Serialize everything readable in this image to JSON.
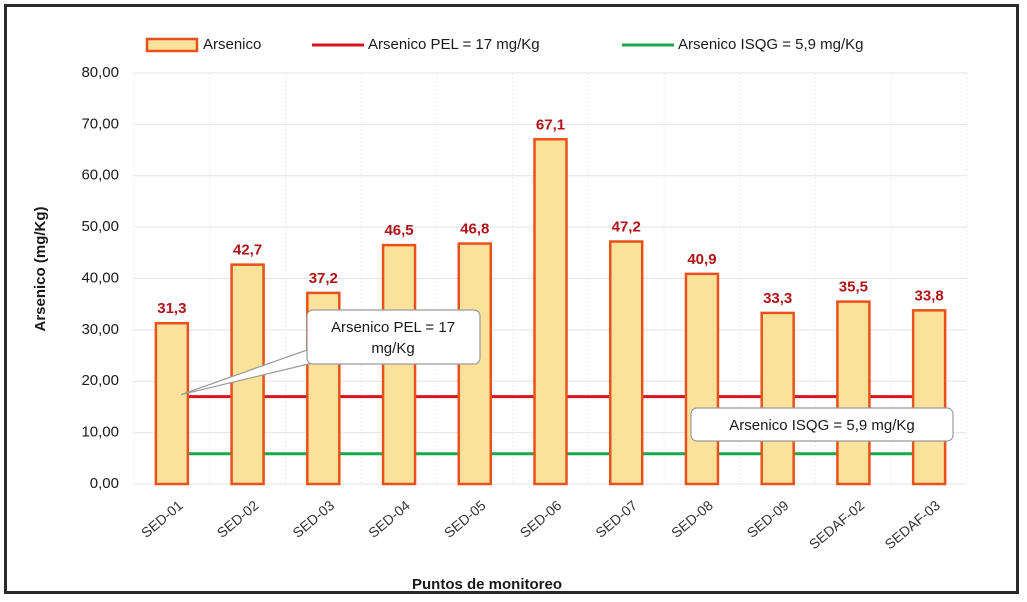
{
  "chart_data": {
    "type": "bar",
    "categories": [
      "SED-01",
      "SED-02",
      "SED-03",
      "SED-04",
      "SED-05",
      "SED-06",
      "SED-07",
      "SED-08",
      "SED-09",
      "SEDAF-02",
      "SEDAF-03"
    ],
    "series": [
      {
        "name": "Arsenico",
        "values": [
          31.3,
          42.7,
          37.2,
          46.5,
          46.8,
          67.1,
          47.2,
          40.9,
          33.3,
          35.5,
          33.8
        ],
        "data_labels": [
          "31,3",
          "42,7",
          "37,2",
          "46,5",
          "46,8",
          "67,1",
          "47,2",
          "40,9",
          "33,3",
          "35,5",
          "33,8"
        ],
        "fill": "#fbe29a",
        "stroke": "#e8501c"
      }
    ],
    "reference_lines": [
      {
        "name": "Arsenico PEL = 17 mg/Kg",
        "value": 17,
        "color": "#d9141c"
      },
      {
        "name": "Arsenico ISQG = 5,9 mg/Kg",
        "value": 5.9,
        "color": "#1aa84a"
      }
    ],
    "callouts": [
      {
        "lines": [
          "Arsenico PEL = 17",
          "mg/Kg"
        ],
        "points_to": "Arsenico PEL = 17 mg/Kg"
      },
      {
        "lines": [
          "Arsenico ISQG = 5,9 mg/Kg"
        ],
        "points_to": "Arsenico ISQG = 5,9 mg/Kg"
      }
    ],
    "xlabel": "Puntos de monitoreo",
    "ylabel": "Arsenico (mg/Kg)",
    "ylim": [
      0,
      80
    ],
    "y_ticks": [
      "0,00",
      "10,00",
      "20,00",
      "30,00",
      "40,00",
      "50,00",
      "60,00",
      "70,00",
      "80,00"
    ],
    "grid": true,
    "legend_position": "top"
  }
}
